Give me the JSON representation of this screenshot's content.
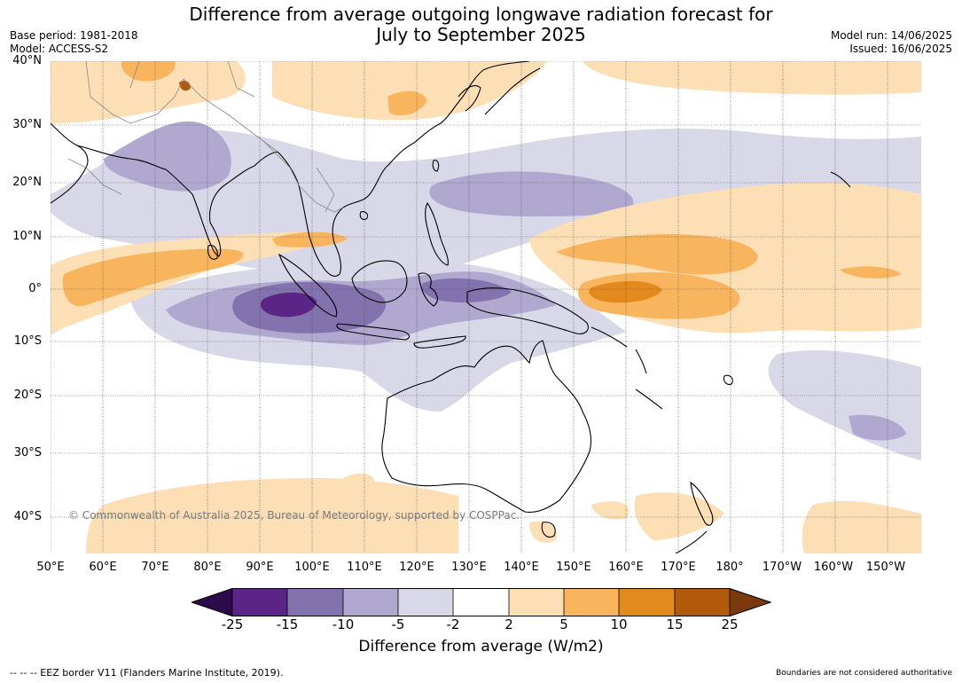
{
  "title_line1": "Difference from average outgoing longwave radiation forecast for",
  "title_line2": "July to September 2025",
  "meta_left": {
    "base_period": "Base period: 1981-2018",
    "model": "Model: ACCESS-S2"
  },
  "meta_right": {
    "model_run": "Model run: 14/06/2025",
    "issued": "Issued: 16/06/2025"
  },
  "latitudes": [
    "40°N",
    "30°N",
    "20°N",
    "10°N",
    "0°",
    "10°S",
    "20°S",
    "30°S",
    "40°S"
  ],
  "longitudes": [
    "50°E",
    "60°E",
    "70°E",
    "80°E",
    "90°E",
    "100°E",
    "110°E",
    "120°E",
    "130°E",
    "140°E",
    "150°E",
    "160°E",
    "170°E",
    "180°",
    "170°W",
    "160°W",
    "150°W"
  ],
  "colorbar": {
    "ticks": [
      "-25",
      "-15",
      "-10",
      "-5",
      "-2",
      "2",
      "5",
      "10",
      "15",
      "25"
    ],
    "colors": {
      "under": "#2d0a4a",
      "m25_15": "#5a2586",
      "m15_10": "#8273ae",
      "m10_5": "#b1a8d0",
      "m5_2": "#d9d8e9",
      "m2_2": "#ffffff",
      "p2_5": "#fcdfb5",
      "p5_10": "#f9b55e",
      "p10_15": "#e38a1f",
      "p15_25": "#b25a0c",
      "over": "#7b3a0e"
    },
    "label": "Difference from average (W/m2)"
  },
  "copyright": "© Commonwealth of Australia 2025, Bureau of Meteorology, supported by COSPPac.",
  "footer_left": "-- -- -- EEZ border V11 (Flanders Marine Institute, 2019).",
  "footer_right": "Boundaries are not considered authoritative"
}
